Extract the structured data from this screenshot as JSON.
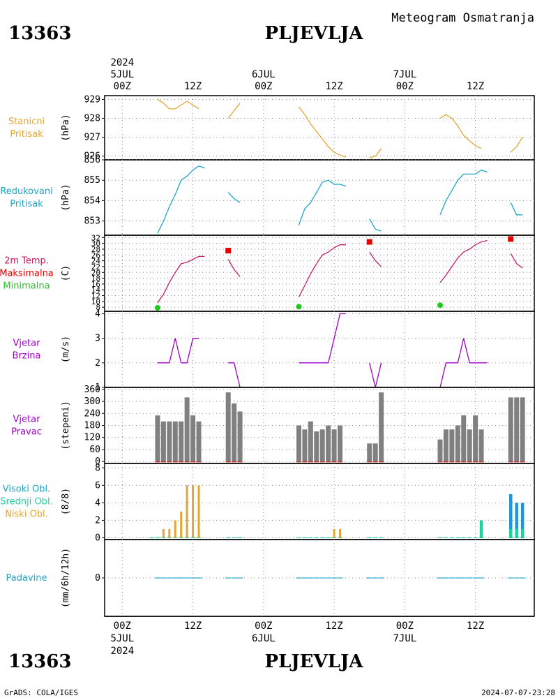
{
  "header": {
    "station_id": "13363",
    "station_name": "PLJEVLJA",
    "product": "Meteogram Osmatranja"
  },
  "footer": {
    "credit": "GrADS: COLA/IGES",
    "timestamp": "2024-07-07-23:28",
    "station_id": "13363",
    "station_name": "PLJEVLJA"
  },
  "time_axis": {
    "year": "2024",
    "day_labels": [
      "5JUL",
      "6JUL",
      "7JUL"
    ],
    "ticks": [
      {
        "hour": 0,
        "label": "00Z",
        "day": "5JUL"
      },
      {
        "hour": 12,
        "label": "12Z"
      },
      {
        "hour": 24,
        "label": "00Z",
        "day": "6JUL"
      },
      {
        "hour": 36,
        "label": "12Z"
      },
      {
        "hour": 48,
        "label": "00Z",
        "day": "7JUL"
      },
      {
        "hour": 60,
        "label": "12Z"
      }
    ],
    "xlim": [
      -3,
      70
    ]
  },
  "colors": {
    "pressure": "#e6a532",
    "reduced": "#1ea5c8",
    "temp_label": "#d2145a",
    "temp_line": "#c81e64",
    "tmax": "#e60000",
    "tmin": "#1ec81e",
    "wind": "#a000c8",
    "bars": "#808080",
    "dir_base": "#c83232",
    "high_cloud": "#1e96dc",
    "mid_cloud": "#1ed2a0",
    "low_cloud": "#e6a532",
    "precip": "#1ea5c8"
  },
  "chart_data": [
    {
      "id": "station_pressure",
      "type": "line",
      "labels": [
        "Stanicni",
        "Pritisak"
      ],
      "unit": "(hPa)",
      "yticks": [
        926,
        927,
        928,
        929
      ],
      "ylim": [
        925.8,
        929.2
      ],
      "segments": [
        [
          [
            6,
            929
          ],
          [
            7,
            928.8
          ],
          [
            8,
            928.5
          ],
          [
            9,
            928.5
          ],
          [
            10,
            928.7
          ],
          [
            11,
            928.9
          ],
          [
            12,
            928.7
          ],
          [
            13,
            928.5
          ]
        ],
        [
          [
            18,
            928
          ],
          [
            19,
            928.4
          ],
          [
            20,
            928.8
          ]
        ],
        [
          [
            30,
            928.6
          ],
          [
            31,
            928.2
          ],
          [
            32,
            927.7
          ],
          [
            33,
            927.3
          ],
          [
            34,
            926.9
          ],
          [
            35,
            926.5
          ],
          [
            36,
            926.2
          ],
          [
            37,
            926.05
          ],
          [
            38,
            925.95
          ]
        ],
        [
          [
            42,
            925.9
          ],
          [
            43,
            926.0
          ],
          [
            44,
            926.4
          ]
        ],
        [
          [
            54,
            928.0
          ],
          [
            55,
            928.2
          ],
          [
            56,
            928.0
          ],
          [
            57,
            927.6
          ],
          [
            58,
            927.1
          ],
          [
            59,
            926.8
          ],
          [
            60,
            926.55
          ],
          [
            61,
            926.4
          ]
        ],
        [
          [
            66,
            926.2
          ],
          [
            67,
            926.5
          ],
          [
            68,
            927.0
          ]
        ]
      ]
    },
    {
      "id": "reduced_pressure",
      "type": "line",
      "labels": [
        "Redukovani",
        "Pritisak"
      ],
      "unit": "(hPa)",
      "yticks": [
        853,
        854,
        855,
        856
      ],
      "ylim": [
        852.3,
        856.0
      ],
      "segments": [
        [
          [
            6,
            852.4
          ],
          [
            7,
            853.0
          ],
          [
            8,
            853.7
          ],
          [
            9,
            854.3
          ],
          [
            10,
            855.0
          ],
          [
            11,
            855.2
          ],
          [
            12,
            855.5
          ],
          [
            13,
            855.7
          ],
          [
            14,
            855.6
          ]
        ],
        [
          [
            18,
            854.4
          ],
          [
            19,
            854.1
          ],
          [
            20,
            853.9
          ]
        ],
        [
          [
            30,
            852.8
          ],
          [
            31,
            853.6
          ],
          [
            32,
            853.9
          ],
          [
            33,
            854.4
          ],
          [
            34,
            854.9
          ],
          [
            35,
            855.0
          ],
          [
            36,
            854.8
          ],
          [
            37,
            854.8
          ],
          [
            38,
            854.7
          ]
        ],
        [
          [
            42,
            853.1
          ],
          [
            43,
            852.6
          ],
          [
            44,
            852.5
          ]
        ],
        [
          [
            54,
            853.3
          ],
          [
            55,
            854.0
          ],
          [
            56,
            854.5
          ],
          [
            57,
            855.0
          ],
          [
            58,
            855.3
          ],
          [
            59,
            855.3
          ],
          [
            60,
            855.3
          ],
          [
            61,
            855.5
          ],
          [
            62,
            855.4
          ]
        ],
        [
          [
            66,
            853.9
          ],
          [
            67,
            853.3
          ],
          [
            68,
            853.3
          ]
        ]
      ]
    },
    {
      "id": "temperature",
      "type": "line",
      "labels": [
        "2m Temp.",
        "Maksimalna",
        "Minimalna"
      ],
      "unit": "(C)",
      "yticks": [
        8,
        10,
        12,
        14,
        16,
        18,
        20,
        22,
        24,
        26,
        28,
        30,
        32
      ],
      "ylim": [
        6.6,
        32.8
      ],
      "segments": [
        [
          [
            6,
            9.5
          ],
          [
            7,
            12.5
          ],
          [
            8,
            16.5
          ],
          [
            9,
            20
          ],
          [
            10,
            23
          ],
          [
            11,
            23.5
          ],
          [
            12,
            24.5
          ],
          [
            13,
            25.5
          ],
          [
            14,
            25.5
          ]
        ],
        [
          [
            18,
            24.5
          ],
          [
            19,
            21
          ],
          [
            20,
            18.5
          ]
        ],
        [
          [
            30,
            11.5
          ],
          [
            31,
            15.5
          ],
          [
            32,
            19.5
          ],
          [
            33,
            23
          ],
          [
            34,
            26
          ],
          [
            35,
            27
          ],
          [
            36,
            28.5
          ],
          [
            37,
            29.5
          ],
          [
            38,
            29.5
          ]
        ],
        [
          [
            42,
            27
          ],
          [
            43,
            24
          ],
          [
            44,
            22
          ]
        ],
        [
          [
            54,
            16.5
          ],
          [
            55,
            19
          ],
          [
            56,
            22
          ],
          [
            57,
            25
          ],
          [
            58,
            27
          ],
          [
            59,
            28
          ],
          [
            60,
            29.5
          ],
          [
            61,
            30.5
          ],
          [
            62,
            31
          ]
        ],
        [
          [
            66,
            26.5
          ],
          [
            67,
            23
          ],
          [
            68,
            21.5
          ]
        ]
      ],
      "tmax": [
        [
          18,
          27.5
        ],
        [
          42,
          30.5
        ],
        [
          66,
          31.5
        ]
      ],
      "tmin": [
        [
          6,
          7.8
        ],
        [
          30,
          8.2
        ],
        [
          54,
          8.7
        ]
      ]
    },
    {
      "id": "wind_speed",
      "type": "line",
      "labels": [
        "Vjetar",
        "Brzina"
      ],
      "unit": "(m/s)",
      "yticks": [
        1,
        2,
        3,
        4
      ],
      "ylim": [
        1,
        4.1
      ],
      "segments": [
        [
          [
            6,
            2
          ],
          [
            7,
            2
          ],
          [
            8,
            2
          ],
          [
            9,
            3
          ],
          [
            10,
            2
          ],
          [
            11,
            2
          ],
          [
            12,
            3
          ],
          [
            13,
            3
          ]
        ],
        [
          [
            18,
            2
          ],
          [
            19,
            2
          ],
          [
            20,
            1
          ]
        ],
        [
          [
            30,
            2
          ],
          [
            31,
            2
          ],
          [
            32,
            2
          ],
          [
            33,
            2
          ],
          [
            34,
            2
          ],
          [
            35,
            2
          ],
          [
            36,
            3
          ],
          [
            37,
            4
          ],
          [
            38,
            4
          ]
        ],
        [
          [
            42,
            2
          ],
          [
            43,
            1
          ],
          [
            44,
            2
          ]
        ],
        [
          [
            54,
            1
          ],
          [
            55,
            2
          ],
          [
            56,
            2
          ],
          [
            57,
            2
          ],
          [
            58,
            3
          ],
          [
            59,
            2
          ],
          [
            60,
            2
          ],
          [
            61,
            2
          ],
          [
            62,
            2
          ]
        ],
        [
          [
            66,
            1
          ],
          [
            67,
            1
          ],
          [
            68,
            1
          ]
        ]
      ]
    },
    {
      "id": "wind_direction",
      "type": "bar",
      "labels": [
        "Vjetar",
        "Pravac"
      ],
      "unit": "(stepeni)",
      "yticks": [
        0,
        60,
        120,
        180,
        240,
        300,
        360
      ],
      "ylim": [
        -10,
        370
      ],
      "values": [
        [
          6,
          230
        ],
        [
          7,
          200
        ],
        [
          8,
          200
        ],
        [
          9,
          200
        ],
        [
          10,
          200
        ],
        [
          11,
          320
        ],
        [
          12,
          230
        ],
        [
          13,
          200
        ],
        [
          18,
          345
        ],
        [
          19,
          290
        ],
        [
          20,
          250
        ],
        [
          30,
          180
        ],
        [
          31,
          160
        ],
        [
          32,
          200
        ],
        [
          33,
          150
        ],
        [
          34,
          160
        ],
        [
          35,
          180
        ],
        [
          36,
          160
        ],
        [
          37,
          180
        ],
        [
          42,
          90
        ],
        [
          43,
          90
        ],
        [
          44,
          345
        ],
        [
          54,
          110
        ],
        [
          55,
          160
        ],
        [
          56,
          160
        ],
        [
          57,
          180
        ],
        [
          58,
          230
        ],
        [
          59,
          160
        ],
        [
          60,
          230
        ],
        [
          61,
          160
        ],
        [
          66,
          320
        ],
        [
          67,
          320
        ],
        [
          68,
          320
        ]
      ]
    },
    {
      "id": "clouds",
      "type": "bar",
      "labels": [
        "Visoki Obl.",
        "Srednji Obl.",
        "Niski Obl."
      ],
      "unit": "(8/8)",
      "yticks": [
        0,
        2,
        4,
        6,
        8
      ],
      "ylim": [
        -0.2,
        8.5
      ],
      "low": [
        [
          7,
          1
        ],
        [
          8,
          1
        ],
        [
          9,
          2
        ],
        [
          10,
          3
        ],
        [
          11,
          6
        ],
        [
          12,
          6
        ],
        [
          13,
          6
        ],
        [
          36,
          1
        ],
        [
          37,
          1
        ]
      ],
      "mid": [
        [
          61,
          2
        ],
        [
          66,
          1
        ],
        [
          67,
          1
        ],
        [
          68,
          1
        ]
      ],
      "high": [
        [
          66,
          4
        ],
        [
          67,
          3
        ],
        [
          68,
          3
        ]
      ],
      "zero_hours": [
        5,
        6,
        7,
        8,
        9,
        10,
        11,
        12,
        13,
        18,
        19,
        20,
        30,
        31,
        32,
        33,
        34,
        35,
        36,
        37,
        42,
        43,
        44,
        54,
        55,
        56,
        57,
        58,
        59,
        60,
        61,
        66,
        67,
        68
      ]
    },
    {
      "id": "precipitation",
      "type": "bar",
      "labels": [
        "Padavine"
      ],
      "unit": "(mm/6h/12h)",
      "yticks": [
        0
      ],
      "ylim": [
        -5,
        5
      ],
      "zero_hours": [
        6,
        7,
        8,
        9,
        10,
        11,
        12,
        13,
        18,
        19,
        20,
        30,
        31,
        32,
        33,
        34,
        35,
        36,
        37,
        42,
        43,
        44,
        54,
        55,
        56,
        57,
        58,
        59,
        60,
        61,
        66,
        67,
        68
      ]
    }
  ]
}
